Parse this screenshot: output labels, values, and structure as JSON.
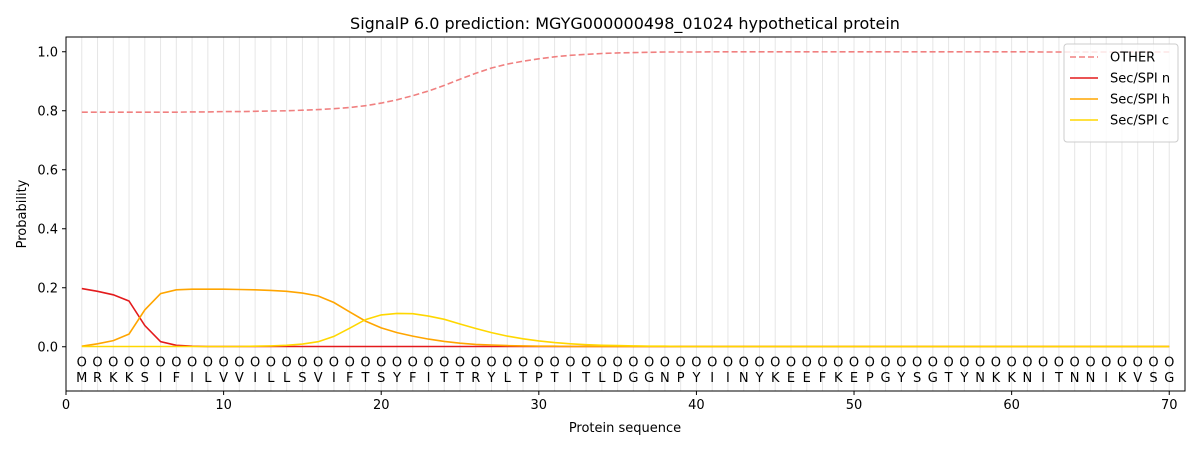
{
  "chart_data": {
    "type": "line",
    "title": "SignalP 6.0 prediction: MGYG000000498_01024 hypothetical protein",
    "xlabel": "Protein sequence",
    "ylabel": "Probability",
    "xlim": [
      0,
      71
    ],
    "ylim": [
      -0.15,
      1.05
    ],
    "xticks": [
      "0",
      "10",
      "20",
      "30",
      "40",
      "50",
      "60",
      "70"
    ],
    "yticks": [
      "0.0",
      "0.2",
      "0.4",
      "0.6",
      "0.8",
      "1.0"
    ],
    "grid": "vertical lines at each residue",
    "legend_position": "top-right",
    "sequence": [
      "M",
      "R",
      "K",
      "K",
      "S",
      "I",
      "F",
      "I",
      "L",
      "V",
      "V",
      "I",
      "L",
      "L",
      "S",
      "V",
      "I",
      "F",
      "T",
      "S",
      "Y",
      "F",
      "I",
      "T",
      "T",
      "R",
      "Y",
      "L",
      "T",
      "P",
      "T",
      "I",
      "T",
      "L",
      "D",
      "G",
      "G",
      "N",
      "P",
      "Y",
      "I",
      "I",
      "N",
      "Y",
      "K",
      "E",
      "E",
      "F",
      "K",
      "E",
      "P",
      "G",
      "Y",
      "S",
      "G",
      "T",
      "Y",
      "N",
      "K",
      "K",
      "N",
      "I",
      "T",
      "N",
      "N",
      "I",
      "K",
      "V",
      "S",
      "G"
    ],
    "sequence_markers": "O",
    "x": [
      1,
      2,
      3,
      4,
      5,
      6,
      7,
      8,
      9,
      10,
      11,
      12,
      13,
      14,
      15,
      16,
      17,
      18,
      19,
      20,
      21,
      22,
      23,
      24,
      25,
      26,
      27,
      28,
      29,
      30,
      31,
      32,
      33,
      34,
      35,
      36,
      37,
      38,
      39,
      40,
      41,
      42,
      43,
      44,
      45,
      46,
      47,
      48,
      49,
      50,
      51,
      52,
      53,
      54,
      55,
      56,
      57,
      58,
      59,
      60,
      61,
      62,
      63,
      64,
      65,
      66,
      67,
      68,
      69,
      70
    ],
    "series": [
      {
        "name": "OTHER",
        "color": "#f08080",
        "style": "dashed",
        "values": [
          0.795,
          0.795,
          0.795,
          0.795,
          0.795,
          0.795,
          0.795,
          0.796,
          0.796,
          0.797,
          0.797,
          0.798,
          0.799,
          0.8,
          0.802,
          0.804,
          0.807,
          0.811,
          0.817,
          0.826,
          0.837,
          0.851,
          0.867,
          0.886,
          0.907,
          0.927,
          0.945,
          0.958,
          0.968,
          0.976,
          0.983,
          0.988,
          0.991,
          0.994,
          0.996,
          0.997,
          0.998,
          0.999,
          0.999,
          0.999,
          1.0,
          1.0,
          1.0,
          1.0,
          1.0,
          1.0,
          1.0,
          1.0,
          1.0,
          1.0,
          1.0,
          1.0,
          1.0,
          1.0,
          1.0,
          1.0,
          1.0,
          1.0,
          1.0,
          1.0,
          1.0,
          0.999,
          0.999,
          0.999,
          0.999,
          0.999,
          0.999,
          0.999,
          0.999,
          0.999
        ]
      },
      {
        "name": "Sec/SPI n",
        "color": "#e31a1c",
        "style": "solid",
        "values": [
          0.197,
          0.188,
          0.176,
          0.155,
          0.072,
          0.017,
          0.005,
          0.002,
          0.001,
          0.001,
          0.001,
          0.001,
          0.001,
          0.001,
          0.001,
          0.001,
          0.001,
          0.001,
          0.001,
          0.001,
          0.001,
          0.001,
          0.001,
          0.001,
          0.001,
          0.001,
          0.001,
          0.001,
          0.001,
          0.001,
          0.001,
          0.001,
          0.001,
          0.001,
          0.001,
          0.001,
          0.001,
          0.001,
          0.001,
          0.001,
          0.001,
          0.001,
          0.001,
          0.001,
          0.001,
          0.001,
          0.001,
          0.001,
          0.001,
          0.001,
          0.001,
          0.001,
          0.001,
          0.001,
          0.001,
          0.001,
          0.001,
          0.001,
          0.001,
          0.001,
          0.001,
          0.001,
          0.001,
          0.001,
          0.001,
          0.001,
          0.001,
          0.001,
          0.001,
          0.001
        ]
      },
      {
        "name": "Sec/SPI h",
        "color": "#ffa500",
        "style": "solid",
        "values": [
          0.002,
          0.01,
          0.021,
          0.043,
          0.125,
          0.18,
          0.193,
          0.195,
          0.195,
          0.195,
          0.194,
          0.193,
          0.191,
          0.188,
          0.182,
          0.172,
          0.15,
          0.118,
          0.087,
          0.064,
          0.048,
          0.036,
          0.026,
          0.018,
          0.012,
          0.008,
          0.006,
          0.004,
          0.003,
          0.002,
          0.002,
          0.001,
          0.001,
          0.001,
          0.001,
          0.001,
          0.001,
          0.001,
          0.001,
          0.001,
          0.001,
          0.001,
          0.001,
          0.001,
          0.001,
          0.001,
          0.001,
          0.001,
          0.001,
          0.001,
          0.001,
          0.001,
          0.001,
          0.001,
          0.001,
          0.001,
          0.001,
          0.001,
          0.001,
          0.001,
          0.001,
          0.001,
          0.001,
          0.001,
          0.001,
          0.001,
          0.001,
          0.001,
          0.001,
          0.001
        ]
      },
      {
        "name": "Sec/SPI c",
        "color": "#ffd700",
        "style": "solid",
        "values": [
          0.001,
          0.001,
          0.001,
          0.001,
          0.001,
          0.001,
          0.001,
          0.001,
          0.001,
          0.001,
          0.001,
          0.002,
          0.003,
          0.005,
          0.009,
          0.017,
          0.035,
          0.063,
          0.092,
          0.108,
          0.113,
          0.112,
          0.104,
          0.093,
          0.077,
          0.062,
          0.048,
          0.036,
          0.027,
          0.02,
          0.014,
          0.01,
          0.007,
          0.005,
          0.004,
          0.003,
          0.002,
          0.002,
          0.001,
          0.001,
          0.001,
          0.001,
          0.001,
          0.001,
          0.001,
          0.001,
          0.001,
          0.001,
          0.001,
          0.001,
          0.001,
          0.001,
          0.001,
          0.001,
          0.001,
          0.001,
          0.001,
          0.001,
          0.001,
          0.001,
          0.001,
          0.001,
          0.001,
          0.001,
          0.001,
          0.001,
          0.001,
          0.001,
          0.001,
          0.001
        ]
      }
    ]
  }
}
